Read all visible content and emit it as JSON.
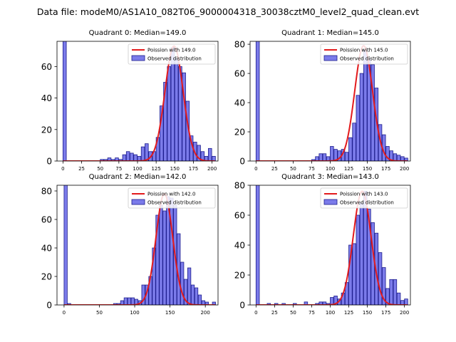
{
  "figure": {
    "suptitle": "Data file: modeM0/AS1A10_082T06_9000004318_30038cztM0_level2_quad_clean.evt"
  },
  "colors": {
    "bar_fill": "#7b7bea",
    "bar_edge": "#1d1d8c",
    "poisson_line": "#e31a1c"
  },
  "chart_data": [
    {
      "type": "bar",
      "title": "Quadrant 0: Median=149.0",
      "xlim": [
        -8,
        208
      ],
      "ylim": [
        0,
        76
      ],
      "xticks": [
        0,
        25,
        50,
        75,
        100,
        125,
        150,
        175,
        200
      ],
      "yticks": [
        0,
        20,
        40,
        60
      ],
      "bin_width": 4.5,
      "bins": [
        [
          0,
          77
        ],
        [
          50,
          1
        ],
        [
          55,
          1
        ],
        [
          60,
          2
        ],
        [
          65,
          1
        ],
        [
          70,
          2
        ],
        [
          75,
          1
        ],
        [
          80,
          4
        ],
        [
          85,
          6
        ],
        [
          90,
          5
        ],
        [
          95,
          4
        ],
        [
          100,
          3
        ],
        [
          105,
          9
        ],
        [
          110,
          11
        ],
        [
          115,
          6
        ],
        [
          120,
          6
        ],
        [
          125,
          15
        ],
        [
          130,
          35
        ],
        [
          135,
          50
        ],
        [
          140,
          60
        ],
        [
          145,
          72
        ],
        [
          150,
          65
        ],
        [
          155,
          60
        ],
        [
          160,
          56
        ],
        [
          165,
          38
        ],
        [
          170,
          16
        ],
        [
          175,
          12
        ],
        [
          180,
          10
        ],
        [
          185,
          6
        ],
        [
          190,
          3
        ],
        [
          195,
          8
        ],
        [
          200,
          3
        ]
      ],
      "poisson_mean": 149.0,
      "poisson_peak": 73,
      "legend": {
        "line_label": "Poission with 149.0",
        "bar_label": "Observed distribution",
        "position": "upper right"
      }
    },
    {
      "type": "bar",
      "title": "Quadrant 1: Median=145.0",
      "xlim": [
        -8,
        208
      ],
      "ylim": [
        0,
        82
      ],
      "xticks": [
        0,
        25,
        50,
        75,
        100,
        125,
        150,
        175,
        200
      ],
      "yticks": [
        0,
        20,
        40,
        60,
        80
      ],
      "bin_width": 4.5,
      "bins": [
        [
          0,
          83
        ],
        [
          75,
          1
        ],
        [
          80,
          3
        ],
        [
          85,
          5
        ],
        [
          90,
          5
        ],
        [
          95,
          3
        ],
        [
          100,
          10
        ],
        [
          105,
          8
        ],
        [
          110,
          7
        ],
        [
          115,
          8
        ],
        [
          120,
          6
        ],
        [
          125,
          16
        ],
        [
          130,
          26
        ],
        [
          135,
          45
        ],
        [
          140,
          60
        ],
        [
          145,
          76
        ],
        [
          150,
          70
        ],
        [
          155,
          66
        ],
        [
          160,
          50
        ],
        [
          165,
          25
        ],
        [
          170,
          18
        ],
        [
          175,
          10
        ],
        [
          180,
          7
        ],
        [
          185,
          5
        ],
        [
          190,
          4
        ],
        [
          195,
          3
        ],
        [
          200,
          2
        ]
      ],
      "poisson_mean": 145.0,
      "poisson_peak": 79,
      "legend": {
        "line_label": "Poission with 145.0",
        "bar_label": "Observed distribution",
        "position": "upper right"
      }
    },
    {
      "type": "bar",
      "title": "Quadrant 2: Median=142.0",
      "xlim": [
        -10,
        218
      ],
      "ylim": [
        0,
        84
      ],
      "xticks": [
        0,
        50,
        100,
        150,
        200
      ],
      "yticks": [
        0,
        20,
        40,
        60,
        80
      ],
      "bin_width": 4.5,
      "bins": [
        [
          0,
          85
        ],
        [
          5,
          1
        ],
        [
          70,
          1
        ],
        [
          75,
          1
        ],
        [
          80,
          3
        ],
        [
          85,
          5
        ],
        [
          90,
          5
        ],
        [
          95,
          5
        ],
        [
          100,
          4
        ],
        [
          105,
          3
        ],
        [
          110,
          14
        ],
        [
          115,
          14
        ],
        [
          120,
          20
        ],
        [
          125,
          40
        ],
        [
          130,
          63
        ],
        [
          135,
          70
        ],
        [
          140,
          66
        ],
        [
          145,
          76
        ],
        [
          150,
          75
        ],
        [
          155,
          70
        ],
        [
          160,
          50
        ],
        [
          165,
          30
        ],
        [
          170,
          18
        ],
        [
          175,
          26
        ],
        [
          180,
          14
        ],
        [
          185,
          12
        ],
        [
          190,
          7
        ],
        [
          195,
          3
        ],
        [
          200,
          2
        ],
        [
          210,
          2
        ]
      ],
      "poisson_mean": 142.0,
      "poisson_peak": 78,
      "legend": {
        "line_label": "Poission with 142.0",
        "bar_label": "Observed distribution",
        "position": "upper right"
      }
    },
    {
      "type": "bar",
      "title": "Quadrant 3: Median=143.0",
      "xlim": [
        -8,
        208
      ],
      "ylim": [
        0,
        80
      ],
      "xticks": [
        0,
        25,
        50,
        75,
        100,
        125,
        150,
        175,
        200
      ],
      "yticks": [
        0,
        20,
        40,
        60,
        80
      ],
      "bin_width": 4.5,
      "bins": [
        [
          0,
          81
        ],
        [
          15,
          1
        ],
        [
          25,
          1
        ],
        [
          35,
          1
        ],
        [
          50,
          1
        ],
        [
          65,
          2
        ],
        [
          80,
          1
        ],
        [
          85,
          2
        ],
        [
          90,
          2
        ],
        [
          95,
          1
        ],
        [
          100,
          5
        ],
        [
          105,
          6
        ],
        [
          110,
          4
        ],
        [
          115,
          8
        ],
        [
          120,
          15
        ],
        [
          125,
          40
        ],
        [
          130,
          41
        ],
        [
          135,
          60
        ],
        [
          140,
          68
        ],
        [
          145,
          76
        ],
        [
          150,
          64
        ],
        [
          155,
          55
        ],
        [
          160,
          48
        ],
        [
          165,
          35
        ],
        [
          170,
          25
        ],
        [
          175,
          11
        ],
        [
          180,
          17
        ],
        [
          185,
          17
        ],
        [
          190,
          8
        ],
        [
          195,
          3
        ],
        [
          200,
          4
        ]
      ],
      "poisson_mean": 143.0,
      "poisson_peak": 76,
      "legend": {
        "line_label": "Poission with 143.0",
        "bar_label": "Observed distribution",
        "position": "upper right"
      }
    }
  ]
}
